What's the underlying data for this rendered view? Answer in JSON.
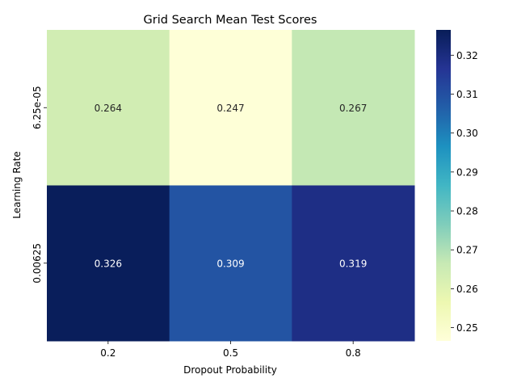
{
  "chart_data": {
    "type": "heatmap",
    "title": "Grid Search Mean Test Scores",
    "xlabel": "Dropout Probability",
    "ylabel": "Learning Rate",
    "x_categories": [
      "0.2",
      "0.5",
      "0.8"
    ],
    "y_categories": [
      "6.25e-05",
      "0.00625"
    ],
    "values": [
      [
        0.264,
        0.247,
        0.267
      ],
      [
        0.326,
        0.309,
        0.319
      ]
    ],
    "cell_labels": [
      [
        "0.264",
        "0.247",
        "0.267"
      ],
      [
        "0.326",
        "0.309",
        "0.319"
      ]
    ],
    "colormap": "YlGnBu",
    "colorbar": {
      "range": [
        0.2466,
        0.3265
      ],
      "ticks": [
        0.25,
        0.26,
        0.27,
        0.28,
        0.29,
        0.3,
        0.31,
        0.32
      ],
      "tick_labels": [
        "0.25",
        "0.26",
        "0.27",
        "0.28",
        "0.29",
        "0.30",
        "0.31",
        "0.32"
      ]
    },
    "grid": false,
    "legend": "colorbar-right"
  }
}
